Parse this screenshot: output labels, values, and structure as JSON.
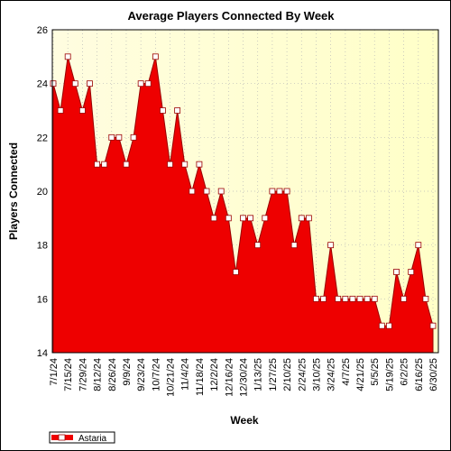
{
  "chart_data": {
    "type": "area",
    "title": "Average Players Connected By Week",
    "xlabel": "Week",
    "ylabel": "Players Connected",
    "ylim": [
      14,
      26
    ],
    "yticks": [
      14,
      16,
      18,
      20,
      22,
      24,
      26
    ],
    "grid": true,
    "legend_position": "bottom-left",
    "colors": {
      "fill": "#ee0000",
      "line": "#990000",
      "marker_fill": "#ffffff",
      "plot_bg_left": "#fffde0",
      "plot_bg_right": "#ffffc8",
      "grid": "#b8b8b8"
    },
    "x_tick_labels": [
      "7/1/24",
      "7/15/24",
      "7/29/24",
      "8/12/24",
      "8/26/24",
      "9/9/24",
      "9/23/24",
      "10/7/24",
      "10/21/24",
      "11/4/24",
      "11/18/24",
      "12/2/24",
      "12/16/24",
      "12/30/24",
      "1/13/25",
      "1/27/25",
      "2/10/25",
      "2/24/25",
      "3/10/25",
      "3/24/25",
      "4/7/25",
      "4/21/25",
      "5/5/25",
      "5/19/25",
      "6/2/25",
      "6/16/25",
      "6/30/25"
    ],
    "series": [
      {
        "name": "Astaria",
        "values": [
          24,
          23,
          25,
          24,
          23,
          24,
          21,
          21,
          22,
          22,
          21,
          22,
          24,
          24,
          25,
          23,
          21,
          23,
          21,
          20,
          21,
          20,
          19,
          20,
          19,
          17,
          19,
          19,
          18,
          19,
          20,
          20,
          20,
          18,
          19,
          19,
          16,
          16,
          18,
          16,
          16,
          16,
          16,
          16,
          16,
          15,
          15,
          17,
          16,
          17,
          18,
          16,
          15
        ]
      }
    ]
  }
}
